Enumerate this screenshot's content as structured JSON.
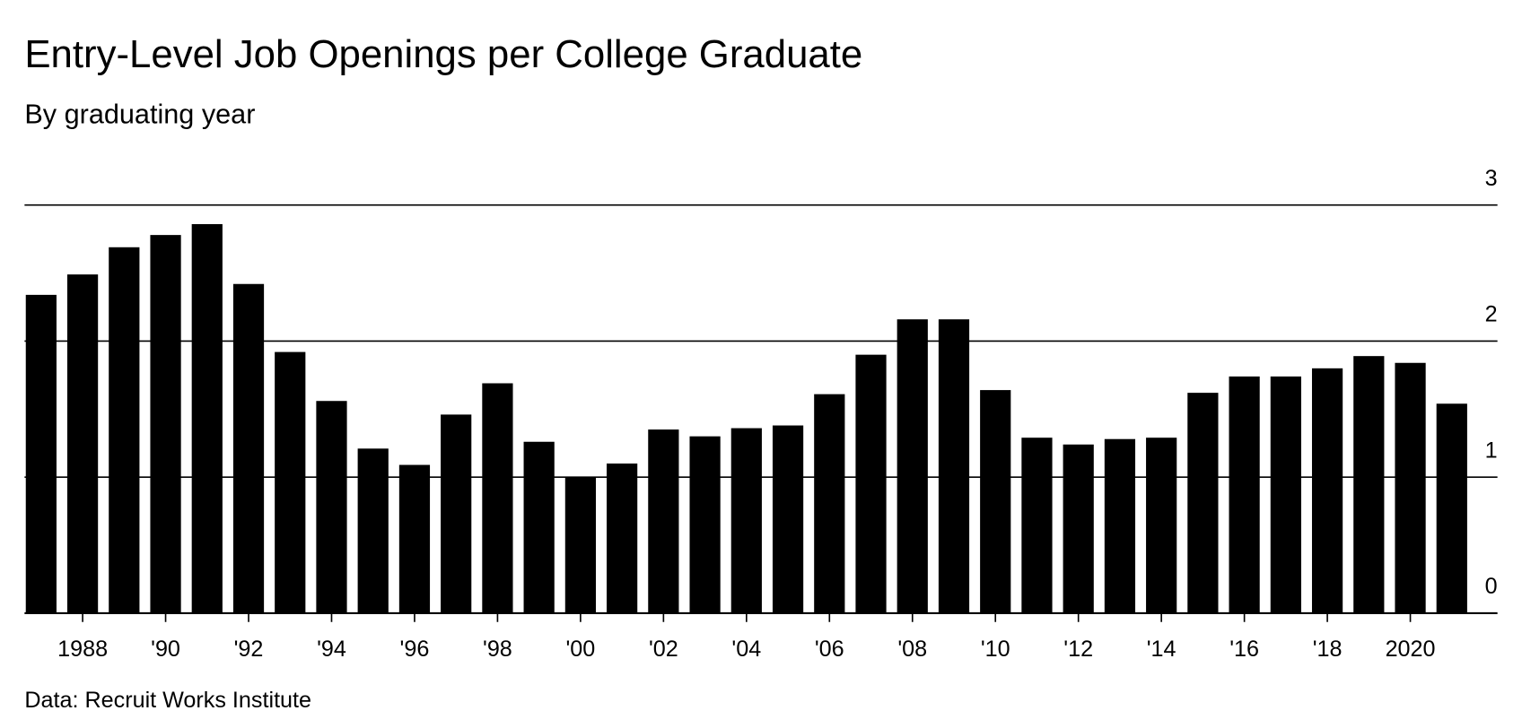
{
  "chart_data": {
    "type": "bar",
    "title": "Entry-Level Job Openings per College Graduate",
    "subtitle": "By graduating year",
    "source": "Data: Recruit Works Institute",
    "color": "#000000",
    "grid": true,
    "x": [
      1987,
      1988,
      1989,
      1990,
      1991,
      1992,
      1993,
      1994,
      1995,
      1996,
      1997,
      1998,
      1999,
      2000,
      2001,
      2002,
      2003,
      2004,
      2005,
      2006,
      2007,
      2008,
      2009,
      2010,
      2011,
      2012,
      2013,
      2014,
      2015,
      2016,
      2017,
      2018,
      2019,
      2020,
      2021
    ],
    "values": [
      2.34,
      2.49,
      2.69,
      2.78,
      2.86,
      2.42,
      1.92,
      1.56,
      1.21,
      1.09,
      1.46,
      1.69,
      1.26,
      1.0,
      1.1,
      1.35,
      1.3,
      1.36,
      1.38,
      1.61,
      1.9,
      2.16,
      2.16,
      1.64,
      1.29,
      1.24,
      1.28,
      1.29,
      1.62,
      1.74,
      1.74,
      1.8,
      1.89,
      1.84,
      1.54
    ],
    "xlim": [
      1986.6,
      2022.1
    ],
    "xticks": [
      {
        "value": 1988,
        "label": "1988"
      },
      {
        "value": 1990,
        "label": "'90"
      },
      {
        "value": 1992,
        "label": "'92"
      },
      {
        "value": 1994,
        "label": "'94"
      },
      {
        "value": 1996,
        "label": "'96"
      },
      {
        "value": 1998,
        "label": "'98"
      },
      {
        "value": 2000,
        "label": "'00"
      },
      {
        "value": 2002,
        "label": "'02"
      },
      {
        "value": 2004,
        "label": "'04"
      },
      {
        "value": 2006,
        "label": "'06"
      },
      {
        "value": 2008,
        "label": "'08"
      },
      {
        "value": 2010,
        "label": "'10"
      },
      {
        "value": 2012,
        "label": "'12"
      },
      {
        "value": 2014,
        "label": "'14"
      },
      {
        "value": 2016,
        "label": "'16"
      },
      {
        "value": 2018,
        "label": "'18"
      },
      {
        "value": 2020,
        "label": "2020"
      }
    ],
    "ylim": [
      0,
      3
    ],
    "yticks": [
      0,
      1,
      2,
      3
    ]
  }
}
